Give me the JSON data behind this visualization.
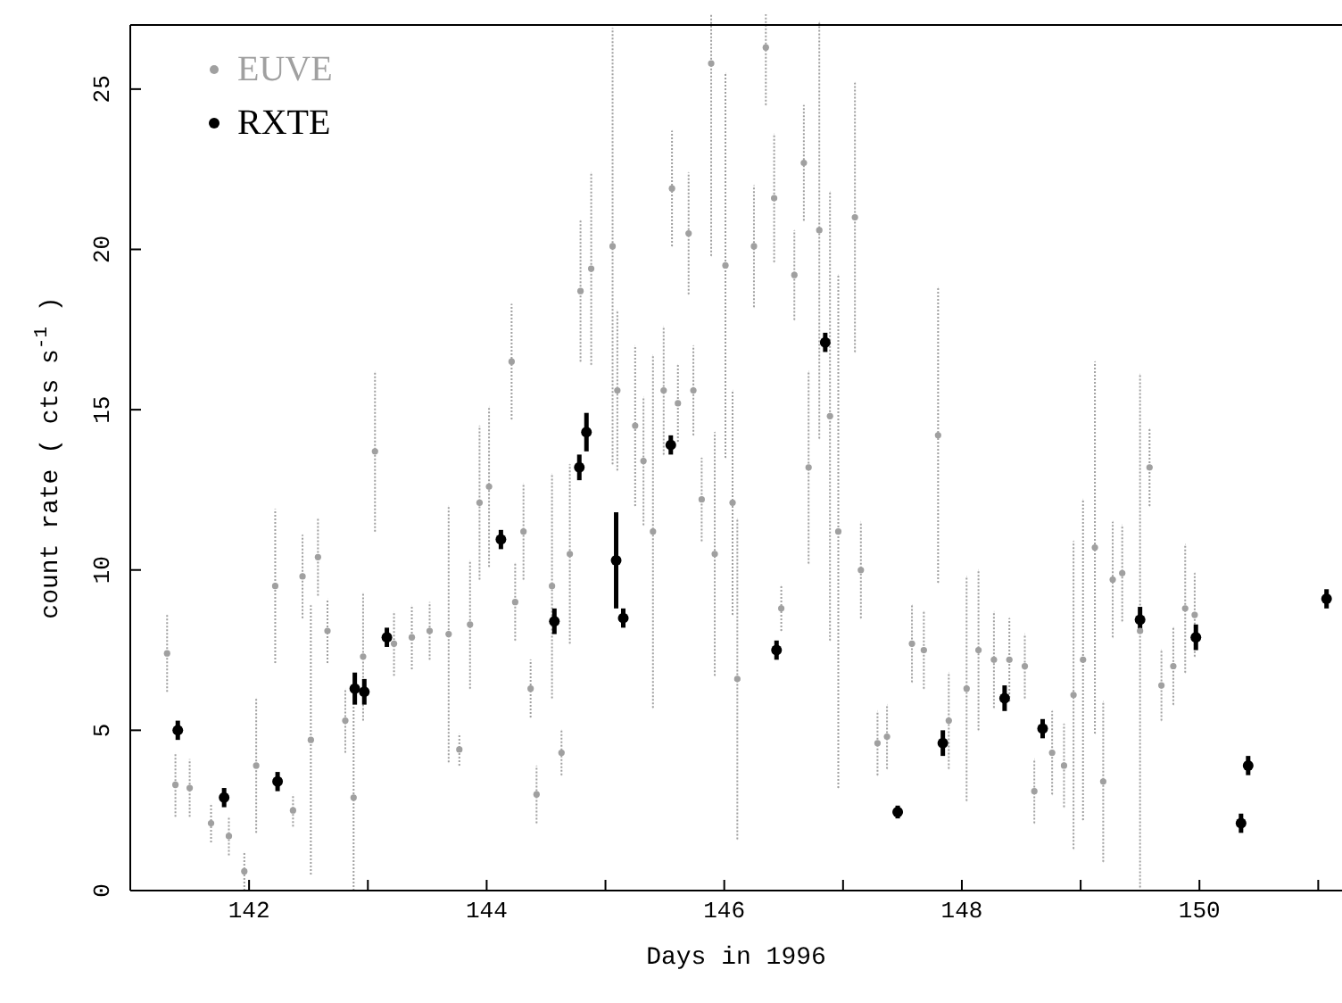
{
  "chart_data": {
    "type": "scatter",
    "xlabel": "Days in 1996",
    "ylabel": "count rate ( cts s$^{-1}$ )",
    "xlim": [
      141,
      151.2
    ],
    "ylim": [
      0,
      27
    ],
    "xticks": [
      142,
      {
        "value": 143,
        "label": null
      },
      144,
      {
        "value": 145,
        "label": null
      },
      146,
      {
        "value": 147,
        "label": null
      },
      148,
      {
        "value": 149,
        "label": null
      },
      150,
      {
        "value": 151,
        "label": null
      }
    ],
    "yticks": [
      0,
      5,
      10,
      15,
      20,
      25
    ],
    "grid": false,
    "legend": "top left",
    "marker": "circle",
    "series": [
      {
        "name": "EUVE",
        "color": "#a0a0a0",
        "x": [
          141.31,
          141.38,
          141.5,
          141.68,
          141.83,
          141.96,
          142.06,
          142.22,
          142.37,
          142.45,
          142.52,
          142.58,
          142.66,
          142.81,
          142.88,
          142.96,
          143.06,
          143.22,
          143.37,
          143.52,
          143.68,
          143.77,
          143.86,
          143.94,
          144.02,
          144.21,
          144.24,
          144.31,
          144.37,
          144.42,
          144.55,
          144.63,
          144.7,
          144.79,
          144.88,
          145.06,
          145.1,
          145.25,
          145.32,
          145.4,
          145.49,
          145.56,
          145.61,
          145.7,
          145.74,
          145.81,
          145.89,
          145.92,
          146.01,
          146.07,
          146.11,
          146.25,
          146.35,
          146.42,
          146.48,
          146.59,
          146.67,
          146.71,
          146.8,
          146.89,
          146.96,
          147.1,
          147.15,
          147.29,
          147.37,
          147.58,
          147.68,
          147.8,
          147.89,
          148.04,
          148.14,
          148.27,
          148.4,
          148.53,
          148.61,
          148.76,
          148.86,
          148.94,
          149.02,
          149.12,
          149.19,
          149.27,
          149.35,
          149.5,
          149.58,
          149.68,
          149.78,
          149.88,
          149.96
        ],
        "values": [
          7.4,
          3.3,
          3.2,
          2.1,
          1.7,
          0.6,
          3.9,
          9.5,
          2.5,
          9.8,
          4.7,
          10.4,
          8.1,
          5.3,
          2.9,
          7.3,
          13.7,
          7.7,
          7.9,
          8.1,
          8.0,
          4.4,
          8.3,
          12.1,
          12.6,
          16.5,
          9.0,
          11.2,
          6.3,
          3.0,
          9.5,
          4.3,
          10.5,
          18.7,
          19.4,
          20.1,
          15.6,
          14.5,
          13.4,
          11.2,
          15.6,
          21.9,
          15.2,
          20.5,
          15.6,
          12.2,
          25.8,
          10.5,
          19.5,
          12.1,
          6.6,
          20.1,
          26.3,
          21.6,
          8.8,
          19.2,
          22.7,
          13.2,
          20.6,
          14.8,
          11.2,
          21.0,
          10.0,
          4.6,
          4.8,
          7.7,
          7.5,
          14.2,
          5.3,
          6.3,
          7.5,
          7.2,
          7.2,
          7.0,
          3.1,
          4.3,
          3.9,
          6.1,
          7.2,
          10.7,
          3.4,
          9.7,
          9.9,
          8.1,
          13.2,
          6.4,
          7.0,
          8.8,
          8.6
        ],
        "errors": [
          1.2,
          1,
          0.9,
          0.6,
          0.6,
          0.6,
          2.1,
          2.4,
          0.5,
          1.3,
          4.2,
          1.2,
          1,
          1,
          2.9,
          2,
          2.5,
          1,
          1,
          0.9,
          4,
          0.5,
          2,
          2.4,
          2.5,
          1.8,
          1.2,
          1.5,
          0.9,
          0.9,
          3.5,
          0.7,
          2.8,
          2.2,
          3,
          6.8,
          2.5,
          2.5,
          2,
          5.5,
          2,
          1.8,
          1.2,
          1.9,
          1.4,
          1.3,
          6,
          3.8,
          6,
          3.5,
          5,
          1.9,
          1.8,
          2,
          0.7,
          1.4,
          1.8,
          3,
          6.5,
          7,
          8,
          4.2,
          1.5,
          1,
          1,
          1.2,
          1.2,
          4.6,
          1.5,
          3.5,
          2.5,
          1.5,
          1.3,
          1,
          1,
          1.3,
          1.3,
          4.8,
          5,
          5.8,
          2.5,
          1.8,
          1.5,
          8,
          1.2,
          1.1,
          1.2,
          2,
          1.3
        ]
      },
      {
        "name": "RXTE",
        "color": "#000000",
        "x": [
          141.4,
          141.79,
          142.24,
          142.89,
          142.97,
          143.16,
          144.12,
          144.57,
          144.78,
          144.84,
          145.09,
          145.15,
          145.55,
          146.44,
          146.85,
          147.46,
          147.84,
          148.36,
          148.68,
          149.5,
          149.97,
          150.35,
          150.41,
          151.07
        ],
        "values": [
          5.0,
          2.9,
          3.4,
          6.3,
          6.2,
          7.9,
          10.95,
          8.4,
          13.2,
          14.3,
          10.3,
          8.5,
          13.9,
          7.5,
          17.1,
          2.45,
          4.6,
          6.0,
          5.05,
          8.45,
          7.9,
          2.1,
          3.9,
          9.1
        ],
        "errors": [
          0.3,
          0.3,
          0.3,
          0.5,
          0.4,
          0.3,
          0.3,
          0.4,
          0.4,
          0.6,
          1.5,
          0.3,
          0.3,
          0.3,
          0.3,
          0.2,
          0.4,
          0.4,
          0.3,
          0.4,
          0.4,
          0.3,
          0.3,
          0.3
        ]
      }
    ]
  }
}
